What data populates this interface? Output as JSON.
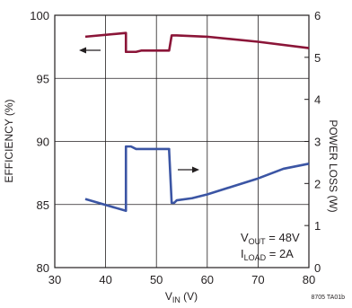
{
  "chart_data": {
    "type": "line",
    "x_axis": {
      "label_main": "V",
      "label_sub": "IN",
      "label_unit": " (V)",
      "range": [
        30,
        80
      ],
      "ticks": [
        30,
        40,
        50,
        60,
        70,
        80
      ]
    },
    "y_left": {
      "label": "EFFICIENCY (%)",
      "range": [
        80,
        100
      ],
      "ticks": [
        80,
        85,
        90,
        95,
        100
      ]
    },
    "y_right": {
      "label": "POWER LOSS (W)",
      "range": [
        0,
        6
      ],
      "ticks": [
        0,
        1,
        2,
        3,
        4,
        5,
        6
      ]
    },
    "grid": true,
    "series": [
      {
        "axis": "left",
        "color": "#8b1538",
        "points": [
          [
            36,
            98.3
          ],
          [
            44,
            98.6
          ],
          [
            44,
            97.1
          ],
          [
            46,
            97.1
          ],
          [
            47,
            97.2
          ],
          [
            52.5,
            97.2
          ],
          [
            52.5,
            97.2
          ],
          [
            53,
            98.4
          ],
          [
            54,
            98.4
          ],
          [
            60,
            98.3
          ],
          [
            70,
            97.9
          ],
          [
            80,
            97.4
          ]
        ]
      },
      {
        "axis": "right",
        "color": "#3b55a4",
        "points": [
          [
            36,
            1.63
          ],
          [
            44,
            1.35
          ],
          [
            44,
            2.88
          ],
          [
            45,
            2.88
          ],
          [
            46,
            2.82
          ],
          [
            52.5,
            2.82
          ],
          [
            52.5,
            2.78
          ],
          [
            53,
            1.54
          ],
          [
            53.5,
            1.54
          ],
          [
            54,
            1.6
          ],
          [
            57,
            1.65
          ],
          [
            60,
            1.74
          ],
          [
            65,
            1.93
          ],
          [
            70,
            2.12
          ],
          [
            75,
            2.35
          ],
          [
            80,
            2.47
          ]
        ]
      }
    ],
    "annotation": {
      "line1_main": "V",
      "line1_sub": "OUT",
      "line1_rest": " = 48V",
      "line2_main": "I",
      "line2_sub": "LOAD",
      "line2_rest": " = 2A"
    },
    "figure_code": "8705 TA01b"
  }
}
